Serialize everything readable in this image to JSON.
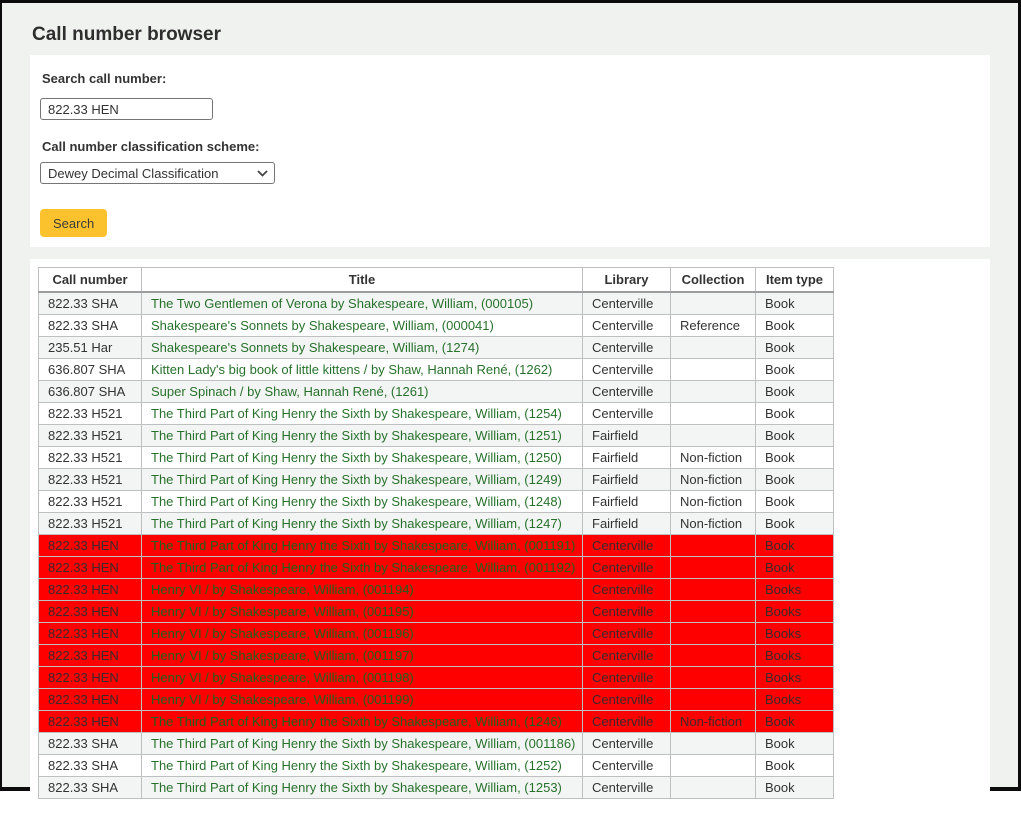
{
  "page": {
    "title": "Call number browser"
  },
  "form": {
    "search_label": "Search call number:",
    "search_value": "822.33 HEN",
    "scheme_label": "Call number classification scheme:",
    "scheme_value": "Dewey Decimal Classification",
    "search_button_label": "Search"
  },
  "colors": {
    "highlight_row_background": "#fe0000",
    "title_link_green": "#27722b",
    "search_button_yellow": "#fcc22d",
    "page_background": "#f0f2f0",
    "row_stripe": "#f3f4f4"
  },
  "table": {
    "headers": [
      "Call number",
      "Title",
      "Library",
      "Collection",
      "Item type"
    ],
    "rows": [
      {
        "call_number": "822.33 SHA",
        "title": "The Two Gentlemen of Verona by Shakespeare, William, (000105)",
        "library": "Centerville",
        "collection": "",
        "item_type": "Book",
        "highlight": false
      },
      {
        "call_number": "822.33 SHA",
        "title": "Shakespeare's Sonnets by Shakespeare, William, (000041)",
        "library": "Centerville",
        "collection": "Reference",
        "item_type": "Book",
        "highlight": false
      },
      {
        "call_number": "235.51 Har",
        "title": "Shakespeare's Sonnets by Shakespeare, William, (1274)",
        "library": "Centerville",
        "collection": "",
        "item_type": "Book",
        "highlight": false
      },
      {
        "call_number": "636.807 SHA",
        "title": "Kitten Lady's big book of little kittens / by Shaw, Hannah René, (1262)",
        "library": "Centerville",
        "collection": "",
        "item_type": "Book",
        "highlight": false
      },
      {
        "call_number": "636.807 SHA",
        "title": "Super Spinach / by Shaw, Hannah René, (1261)",
        "library": "Centerville",
        "collection": "",
        "item_type": "Book",
        "highlight": false
      },
      {
        "call_number": "822.33 H521",
        "title": "The Third Part of King Henry the Sixth by Shakespeare, William, (1254)",
        "library": "Centerville",
        "collection": "",
        "item_type": "Book",
        "highlight": false
      },
      {
        "call_number": "822.33 H521",
        "title": "The Third Part of King Henry the Sixth by Shakespeare, William, (1251)",
        "library": "Fairfield",
        "collection": "",
        "item_type": "Book",
        "highlight": false
      },
      {
        "call_number": "822.33 H521",
        "title": "The Third Part of King Henry the Sixth by Shakespeare, William, (1250)",
        "library": "Fairfield",
        "collection": "Non-fiction",
        "item_type": "Book",
        "highlight": false
      },
      {
        "call_number": "822.33 H521",
        "title": "The Third Part of King Henry the Sixth by Shakespeare, William, (1249)",
        "library": "Fairfield",
        "collection": "Non-fiction",
        "item_type": "Book",
        "highlight": false
      },
      {
        "call_number": "822.33 H521",
        "title": "The Third Part of King Henry the Sixth by Shakespeare, William, (1248)",
        "library": "Fairfield",
        "collection": "Non-fiction",
        "item_type": "Book",
        "highlight": false
      },
      {
        "call_number": "822.33 H521",
        "title": "The Third Part of King Henry the Sixth by Shakespeare, William, (1247)",
        "library": "Fairfield",
        "collection": "Non-fiction",
        "item_type": "Book",
        "highlight": false
      },
      {
        "call_number": "822.33 HEN",
        "title": "The Third Part of King Henry the Sixth by Shakespeare, William, (001191)",
        "library": "Centerville",
        "collection": "",
        "item_type": "Book",
        "highlight": true
      },
      {
        "call_number": "822.33 HEN",
        "title": "The Third Part of King Henry the Sixth by Shakespeare, William, (001192)",
        "library": "Centerville",
        "collection": "",
        "item_type": "Book",
        "highlight": true
      },
      {
        "call_number": "822.33 HEN",
        "title": "Henry VI / by Shakespeare, William, (001194)",
        "library": "Centerville",
        "collection": "",
        "item_type": "Books",
        "highlight": true
      },
      {
        "call_number": "822.33 HEN",
        "title": "Henry VI / by Shakespeare, William, (001195)",
        "library": "Centerville",
        "collection": "",
        "item_type": "Books",
        "highlight": true
      },
      {
        "call_number": "822.33 HEN",
        "title": "Henry VI / by Shakespeare, William, (001196)",
        "library": "Centerville",
        "collection": "",
        "item_type": "Books",
        "highlight": true
      },
      {
        "call_number": "822.33 HEN",
        "title": "Henry VI / by Shakespeare, William, (001197)",
        "library": "Centerville",
        "collection": "",
        "item_type": "Books",
        "highlight": true
      },
      {
        "call_number": "822.33 HEN",
        "title": "Henry VI / by Shakespeare, William, (001198)",
        "library": "Centerville",
        "collection": "",
        "item_type": "Books",
        "highlight": true
      },
      {
        "call_number": "822.33 HEN",
        "title": "Henry VI / by Shakespeare, William, (001199)",
        "library": "Centerville",
        "collection": "",
        "item_type": "Books",
        "highlight": true
      },
      {
        "call_number": "822.33 HEN",
        "title": "The Third Part of King Henry the Sixth by Shakespeare, William, (1246)",
        "library": "Centerville",
        "collection": "Non-fiction",
        "item_type": "Book",
        "highlight": true
      },
      {
        "call_number": "822.33 SHA",
        "title": "The Third Part of King Henry the Sixth by Shakespeare, William, (001186)",
        "library": "Centerville",
        "collection": "",
        "item_type": "Book",
        "highlight": false
      },
      {
        "call_number": "822.33 SHA",
        "title": "The Third Part of King Henry the Sixth by Shakespeare, William, (1252)",
        "library": "Centerville",
        "collection": "",
        "item_type": "Book",
        "highlight": false
      },
      {
        "call_number": "822.33 SHA",
        "title": "The Third Part of King Henry the Sixth by Shakespeare, William, (1253)",
        "library": "Centerville",
        "collection": "",
        "item_type": "Book",
        "highlight": false
      }
    ]
  }
}
